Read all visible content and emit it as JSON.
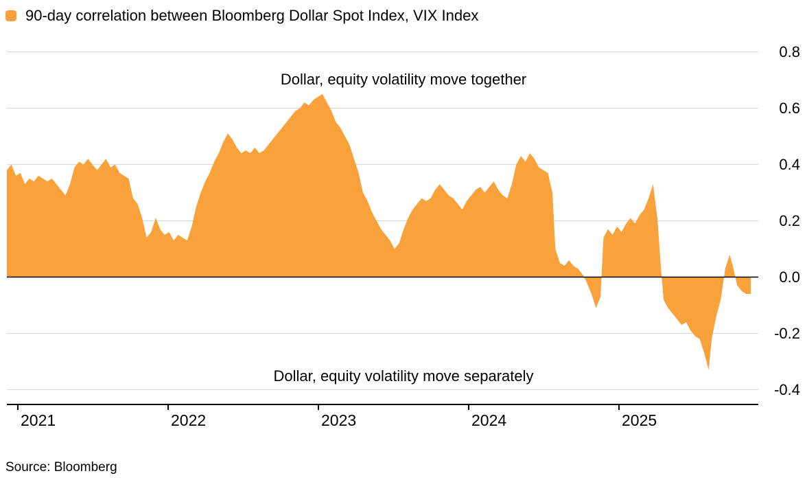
{
  "legend": {
    "label": "90-day correlation between Bloomberg Dollar Spot Index, VIX Index",
    "swatch_color": "#F9A13B"
  },
  "annotations": {
    "top": "Dollar, equity volatility move together",
    "bottom": "Dollar, equity volatility move separately"
  },
  "source": "Source: Bloomberg",
  "chart_data": {
    "type": "area",
    "title": "90-day correlation between Bloomberg Dollar Spot Index, VIX Index",
    "xlabel": "",
    "ylabel": "",
    "fill_color": "#F9A13B",
    "grid": true,
    "zero_line": true,
    "y_axis_side": "right",
    "legend_position": "top-left",
    "xlim": [
      2020.93,
      2025.93
    ],
    "ylim": [
      -0.45,
      0.85
    ],
    "x_ticks": [
      2021,
      2022,
      2023,
      2024,
      2025
    ],
    "y_ticks": [
      "0.8",
      "0.6",
      "0.4",
      "0.2",
      "0.0",
      "-0.2",
      "-0.4"
    ],
    "x": [
      2020.93,
      2020.96,
      2020.99,
      2021.02,
      2021.05,
      2021.08,
      2021.11,
      2021.14,
      2021.17,
      2021.2,
      2021.23,
      2021.26,
      2021.29,
      2021.32,
      2021.35,
      2021.38,
      2021.41,
      2021.44,
      2021.47,
      2021.5,
      2021.53,
      2021.56,
      2021.59,
      2021.62,
      2021.65,
      2021.68,
      2021.71,
      2021.74,
      2021.77,
      2021.8,
      2021.83,
      2021.86,
      2021.89,
      2021.92,
      2021.95,
      2021.98,
      2022.01,
      2022.04,
      2022.07,
      2022.1,
      2022.13,
      2022.16,
      2022.19,
      2022.22,
      2022.25,
      2022.28,
      2022.31,
      2022.34,
      2022.37,
      2022.4,
      2022.43,
      2022.46,
      2022.49,
      2022.52,
      2022.55,
      2022.58,
      2022.61,
      2022.64,
      2022.67,
      2022.7,
      2022.73,
      2022.76,
      2022.79,
      2022.82,
      2022.85,
      2022.88,
      2022.91,
      2022.94,
      2022.97,
      2023.0,
      2023.03,
      2023.06,
      2023.09,
      2023.12,
      2023.15,
      2023.18,
      2023.21,
      2023.24,
      2023.27,
      2023.3,
      2023.33,
      2023.36,
      2023.39,
      2023.42,
      2023.45,
      2023.48,
      2023.51,
      2023.54,
      2023.57,
      2023.6,
      2023.63,
      2023.66,
      2023.69,
      2023.72,
      2023.75,
      2023.78,
      2023.81,
      2023.84,
      2023.87,
      2023.9,
      2023.93,
      2023.96,
      2023.99,
      2024.02,
      2024.05,
      2024.08,
      2024.11,
      2024.14,
      2024.17,
      2024.2,
      2024.23,
      2024.26,
      2024.29,
      2024.32,
      2024.35,
      2024.38,
      2024.41,
      2024.44,
      2024.47,
      2024.5,
      2024.53,
      2024.56,
      2024.58,
      2024.61,
      2024.64,
      2024.67,
      2024.7,
      2024.73,
      2024.76,
      2024.79,
      2024.82,
      2024.85,
      2024.88,
      2024.9,
      2024.93,
      2024.96,
      2024.99,
      2025.02,
      2025.05,
      2025.08,
      2025.11,
      2025.14,
      2025.17,
      2025.2,
      2025.23,
      2025.26,
      2025.28,
      2025.3,
      2025.33,
      2025.36,
      2025.39,
      2025.42,
      2025.45,
      2025.48,
      2025.51,
      2025.54,
      2025.57,
      2025.6,
      2025.62,
      2025.65,
      2025.68,
      2025.71,
      2025.74,
      2025.76,
      2025.79,
      2025.82,
      2025.85,
      2025.88
    ],
    "values": [
      0.38,
      0.4,
      0.36,
      0.37,
      0.33,
      0.35,
      0.34,
      0.36,
      0.35,
      0.34,
      0.35,
      0.33,
      0.31,
      0.29,
      0.33,
      0.39,
      0.41,
      0.4,
      0.42,
      0.4,
      0.38,
      0.4,
      0.42,
      0.39,
      0.4,
      0.37,
      0.36,
      0.35,
      0.28,
      0.26,
      0.21,
      0.14,
      0.16,
      0.21,
      0.17,
      0.15,
      0.16,
      0.13,
      0.15,
      0.14,
      0.13,
      0.18,
      0.25,
      0.3,
      0.34,
      0.37,
      0.41,
      0.44,
      0.48,
      0.51,
      0.49,
      0.46,
      0.44,
      0.45,
      0.44,
      0.46,
      0.44,
      0.45,
      0.47,
      0.49,
      0.51,
      0.53,
      0.55,
      0.57,
      0.59,
      0.6,
      0.62,
      0.61,
      0.63,
      0.64,
      0.65,
      0.62,
      0.59,
      0.55,
      0.53,
      0.5,
      0.47,
      0.42,
      0.37,
      0.3,
      0.27,
      0.23,
      0.2,
      0.17,
      0.15,
      0.13,
      0.1,
      0.12,
      0.17,
      0.21,
      0.24,
      0.26,
      0.28,
      0.27,
      0.28,
      0.31,
      0.33,
      0.31,
      0.29,
      0.28,
      0.26,
      0.24,
      0.27,
      0.29,
      0.31,
      0.32,
      0.3,
      0.32,
      0.34,
      0.31,
      0.29,
      0.28,
      0.33,
      0.4,
      0.43,
      0.41,
      0.44,
      0.42,
      0.39,
      0.38,
      0.37,
      0.3,
      0.1,
      0.05,
      0.04,
      0.06,
      0.04,
      0.03,
      0.01,
      -0.02,
      -0.06,
      -0.11,
      -0.07,
      0.14,
      0.17,
      0.15,
      0.18,
      0.16,
      0.19,
      0.21,
      0.19,
      0.22,
      0.24,
      0.28,
      0.33,
      0.2,
      0.05,
      -0.08,
      -0.11,
      -0.13,
      -0.15,
      -0.17,
      -0.16,
      -0.19,
      -0.21,
      -0.22,
      -0.27,
      -0.33,
      -0.22,
      -0.14,
      -0.08,
      0.03,
      0.08,
      0.04,
      -0.03,
      -0.05,
      -0.06,
      -0.06
    ]
  }
}
